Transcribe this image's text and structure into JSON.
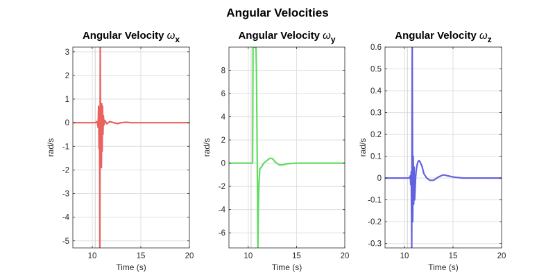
{
  "figure": {
    "title": "Angular Velocities"
  },
  "chart_data": [
    {
      "type": "line",
      "title_text": "Angular Velocity ",
      "title_symbol": "ω",
      "title_sub": "x",
      "xlabel": "Time (s)",
      "ylabel": "rad/s",
      "xlim": [
        8,
        20
      ],
      "ylim": [
        -5.3,
        3.2
      ],
      "xticks": [
        10,
        15,
        20
      ],
      "yticks": [
        3,
        2,
        1,
        0,
        -1,
        -2,
        -3,
        -4,
        -5
      ],
      "grid": true,
      "color": "#e8625e",
      "vline": 10.3,
      "series": [
        {
          "x": [
            8,
            10.3,
            10.5,
            10.6,
            10.65,
            10.7,
            10.75,
            10.78,
            10.82,
            10.86,
            10.9,
            10.94,
            10.98,
            11.02,
            11.06,
            11.1,
            11.15,
            11.2,
            11.3,
            11.5,
            11.8,
            12.2,
            12.6,
            13.0,
            13.5,
            14.0,
            15,
            16,
            17,
            18,
            19,
            20
          ],
          "y": [
            0,
            0,
            0.05,
            -0.2,
            0.7,
            -1.1,
            0.5,
            -5.3,
            3.2,
            -1.6,
            0.8,
            -1.9,
            0.8,
            -1.2,
            0.7,
            -0.5,
            0.3,
            -0.1,
            0.1,
            -0.05,
            0.05,
            0.0,
            -0.04,
            0.0,
            0.02,
            0.0,
            0,
            0,
            0,
            0,
            0,
            0
          ]
        }
      ]
    },
    {
      "type": "line",
      "title_text": "Angular Velocity ",
      "title_symbol": "ω",
      "title_sub": "y",
      "xlabel": "Time (s)",
      "ylabel": "rad/s",
      "xlim": [
        8,
        20
      ],
      "ylim": [
        -7.3,
        10
      ],
      "xticks": [
        10,
        15,
        20
      ],
      "yticks": [
        8,
        6,
        4,
        2,
        0,
        -2,
        -4,
        -6
      ],
      "grid": true,
      "color": "#62dc62",
      "vline": 10.3,
      "series": [
        {
          "x": [
            8,
            10.3,
            10.45,
            10.5,
            10.6,
            10.7,
            10.8,
            10.85,
            10.9,
            10.95,
            11.0,
            11.05,
            11.1,
            11.2,
            11.4,
            11.6,
            11.9,
            12.2,
            12.5,
            12.8,
            13.2,
            13.6,
            14.0,
            15,
            16,
            17,
            18,
            19,
            20
          ],
          "y": [
            0,
            0,
            0,
            10,
            10,
            10,
            10,
            8,
            3,
            -2,
            -7.3,
            -4,
            -2,
            -0.5,
            -0.3,
            0,
            0.2,
            0.4,
            0.4,
            0.1,
            -0.15,
            -0.15,
            -0.05,
            0,
            0,
            0,
            0,
            0,
            0
          ]
        }
      ]
    },
    {
      "type": "line",
      "title_text": "Angular Velocity ",
      "title_symbol": "ω",
      "title_sub": "z",
      "xlabel": "Time (s)",
      "ylabel": "rad/s",
      "xlim": [
        8,
        20
      ],
      "ylim": [
        -0.32,
        0.6
      ],
      "xticks": [
        10,
        15,
        20
      ],
      "yticks": [
        0.6,
        0.5,
        0.4,
        0.3,
        0.2,
        0.1,
        0,
        -0.1,
        -0.2,
        -0.3
      ],
      "grid": true,
      "color": "#6262e0",
      "vline": 10.3,
      "series": [
        {
          "x": [
            8,
            10.3,
            10.5,
            10.6,
            10.65,
            10.7,
            10.75,
            10.8,
            10.85,
            10.9,
            10.95,
            11.0,
            11.05,
            11.1,
            11.15,
            11.2,
            11.3,
            11.4,
            11.5,
            11.6,
            11.8,
            12.0,
            12.3,
            12.6,
            13.0,
            13.5,
            14.0,
            14.5,
            15,
            16,
            17,
            18,
            19,
            20
          ],
          "y": [
            0,
            0,
            0,
            0.01,
            -0.03,
            0.03,
            -0.32,
            0.6,
            -0.2,
            0.1,
            -0.12,
            0.05,
            -0.1,
            -0.05,
            0.0,
            0.03,
            0.06,
            0.075,
            0.08,
            0.075,
            0.055,
            0.02,
            0.0,
            -0.01,
            -0.01,
            0.005,
            0.015,
            0.01,
            0.005,
            0,
            0,
            0,
            0,
            0
          ]
        }
      ]
    }
  ]
}
